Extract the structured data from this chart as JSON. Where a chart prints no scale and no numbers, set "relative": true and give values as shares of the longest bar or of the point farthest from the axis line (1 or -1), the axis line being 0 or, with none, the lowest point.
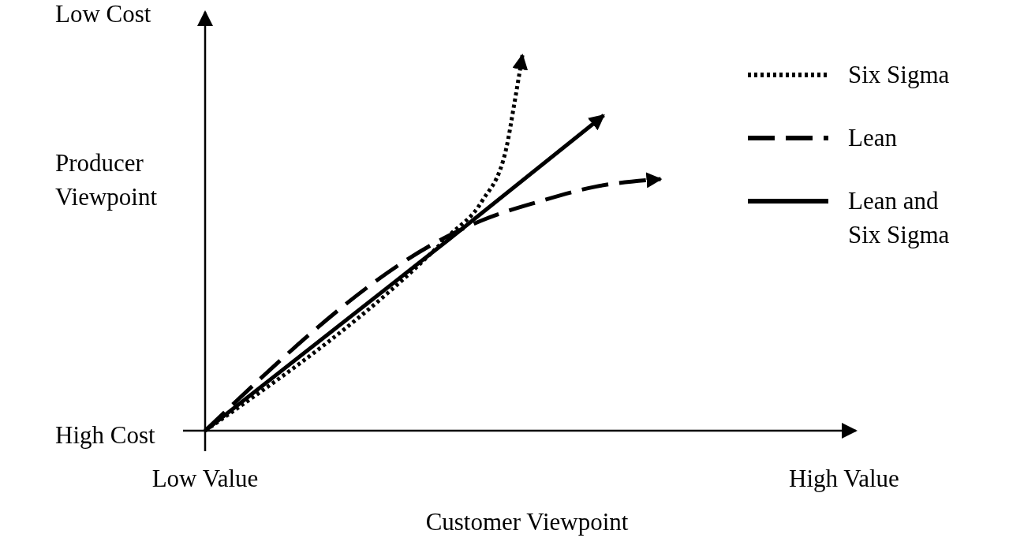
{
  "chart_data": {
    "type": "line",
    "relative": true,
    "xlabel": "Customer Viewpoint",
    "ylabel": "Producer Viewpoint",
    "categories": [
      null,
      null,
      null,
      null,
      null,
      null,
      null,
      null,
      null,
      null,
      null,
      null,
      null,
      null,
      null,
      null,
      null,
      null,
      null,
      null,
      null,
      null,
      null,
      null,
      null,
      null,
      null,
      null,
      null,
      null,
      null,
      null,
      null,
      null,
      null,
      null,
      null,
      null,
      null,
      null,
      null,
      null,
      null,
      null,
      null,
      null,
      null,
      null,
      null,
      null,
      null,
      null,
      null,
      null,
      null,
      null,
      null,
      null,
      null,
      null,
      null,
      null,
      null,
      null,
      null,
      null,
      null,
      null,
      null,
      null,
      null,
      null,
      null,
      null,
      null,
      null,
      null,
      null,
      null,
      null,
      null
    ],
    "annotations": [
      "Low Cost",
      "High Cost",
      "Low Value",
      "High Value"
    ],
    "legend": "top right",
    "marker": "none",
    "series": [
      {
        "name": "Six Sigma",
        "color": "#000000",
        "line_style": "dotted",
        "values": [
          0,
          null,
          null,
          null,
          null,
          null,
          null,
          null,
          null,
          null,
          null,
          null,
          null,
          null,
          null,
          null,
          null,
          null,
          null,
          null,
          null,
          null,
          null,
          null,
          null,
          null,
          null,
          null,
          null,
          null,
          0.52,
          null,
          null,
          null,
          0.61,
          null,
          null,
          0.75,
          0.87,
          1,
          null,
          null,
          null,
          null,
          null,
          null,
          null,
          null,
          null,
          null,
          null,
          null,
          null,
          null,
          null,
          null,
          null,
          null,
          null,
          null,
          null,
          null,
          null,
          null,
          null,
          null,
          null,
          null,
          null,
          null,
          null,
          null,
          null,
          null,
          null,
          null,
          null,
          null,
          null,
          null,
          null
        ]
      },
      {
        "name": "Lean",
        "color": "#000000",
        "line_style": "dashed",
        "values": [
          0,
          null,
          null,
          null,
          null,
          null,
          null,
          null,
          null,
          null,
          null,
          null,
          null,
          null,
          null,
          null,
          null,
          null,
          null,
          null,
          null,
          null,
          null,
          null,
          null,
          null,
          null,
          null,
          null,
          null,
          0.52,
          null,
          null,
          null,
          0.56,
          null,
          null,
          null,
          null,
          null,
          null,
          0.61,
          null,
          null,
          null,
          null,
          null,
          null,
          0.65,
          null,
          null,
          null,
          null,
          null,
          null,
          null,
          0.67,
          null,
          null,
          null,
          null,
          null,
          null,
          null,
          null,
          null,
          null,
          null,
          null,
          null,
          null,
          null,
          null,
          null,
          null,
          null,
          null,
          null,
          null,
          null,
          null
        ]
      },
      {
        "name": "Lean and Six Sigma",
        "color": "#000000",
        "line_style": "solid",
        "values": [
          0,
          null,
          null,
          null,
          null,
          null,
          null,
          null,
          null,
          null,
          null,
          null,
          null,
          null,
          null,
          null,
          null,
          null,
          null,
          null,
          null,
          null,
          null,
          null,
          null,
          null,
          null,
          null,
          null,
          null,
          0.51,
          null,
          null,
          null,
          null,
          null,
          null,
          null,
          null,
          null,
          null,
          null,
          null,
          null,
          null,
          null,
          null,
          null,
          null,
          0.84,
          null,
          null,
          null,
          null,
          null,
          null,
          null,
          null,
          null,
          null,
          null,
          null,
          null,
          null,
          null,
          null,
          null,
          null,
          null,
          null,
          null,
          null,
          null,
          null,
          null,
          null,
          null,
          null,
          null,
          null,
          null
        ]
      }
    ]
  }
}
